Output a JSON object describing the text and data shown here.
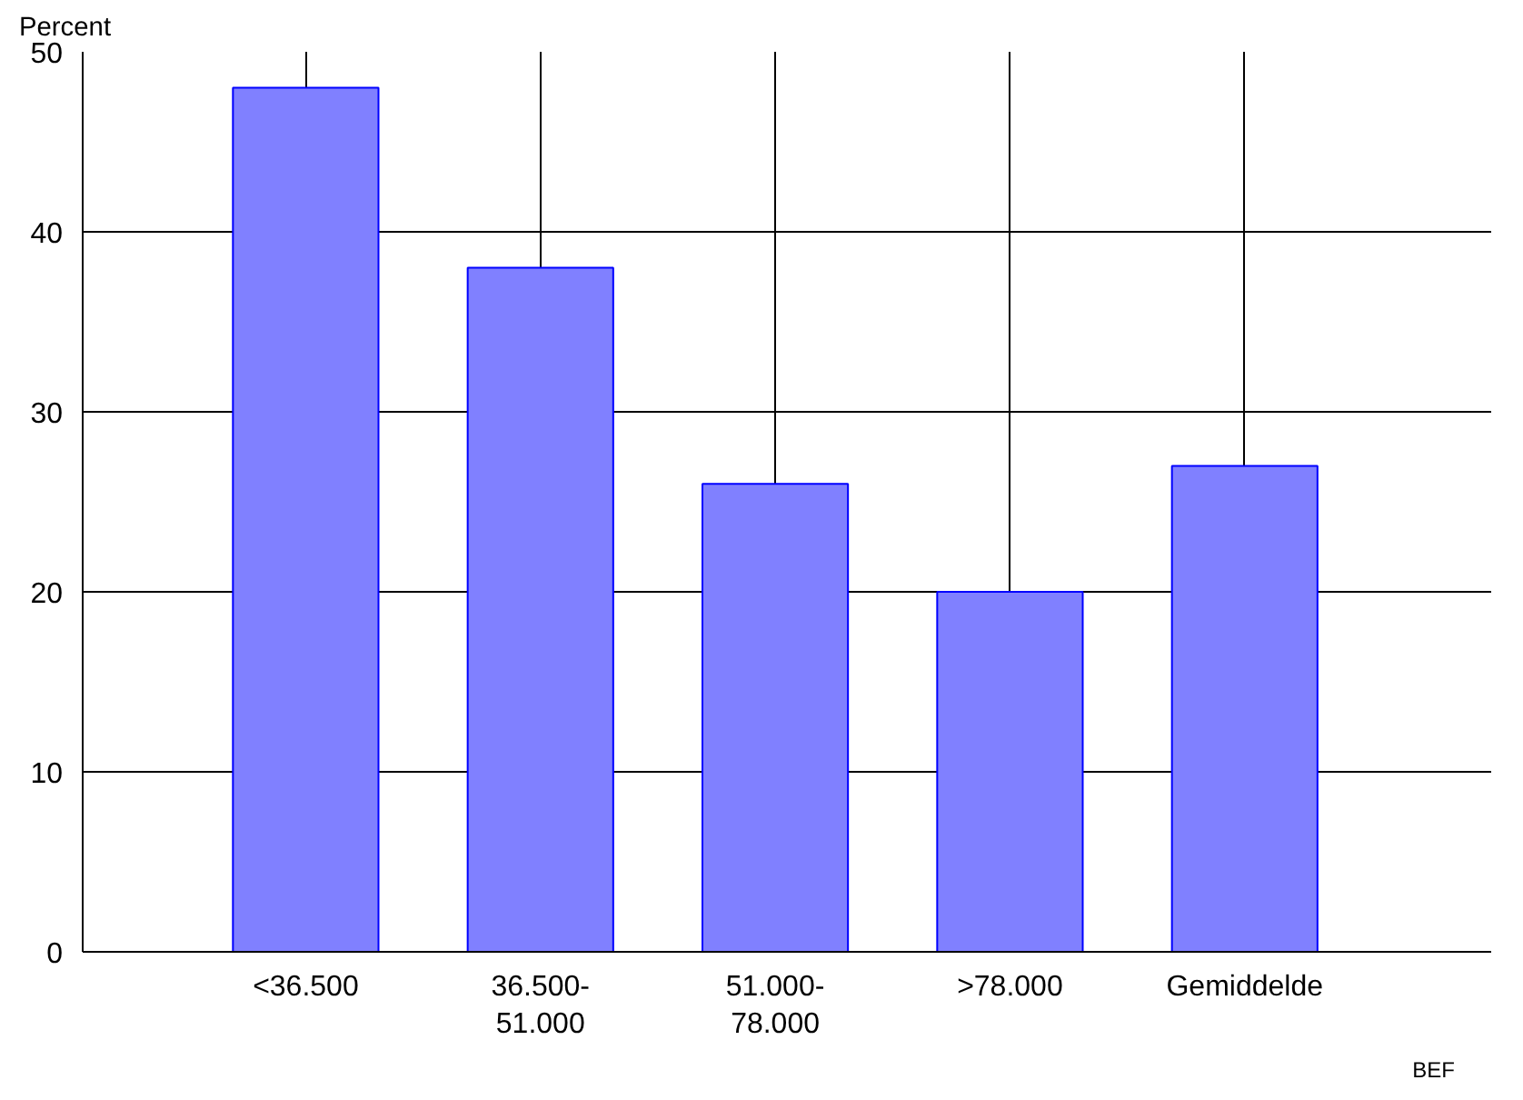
{
  "chart_data": {
    "type": "bar",
    "ylabel": "Percent",
    "xlabel": "BEF",
    "categories": [
      "<36.500",
      "36.500-51.000",
      "51.000-78.000",
      ">78.000",
      "Gemiddelde"
    ],
    "values": [
      48,
      38,
      26,
      20,
      27
    ],
    "color": "#8080ff",
    "ylim": [
      0,
      50
    ],
    "yticks": [
      0,
      10,
      20,
      30,
      40,
      50
    ],
    "grid": true
  }
}
